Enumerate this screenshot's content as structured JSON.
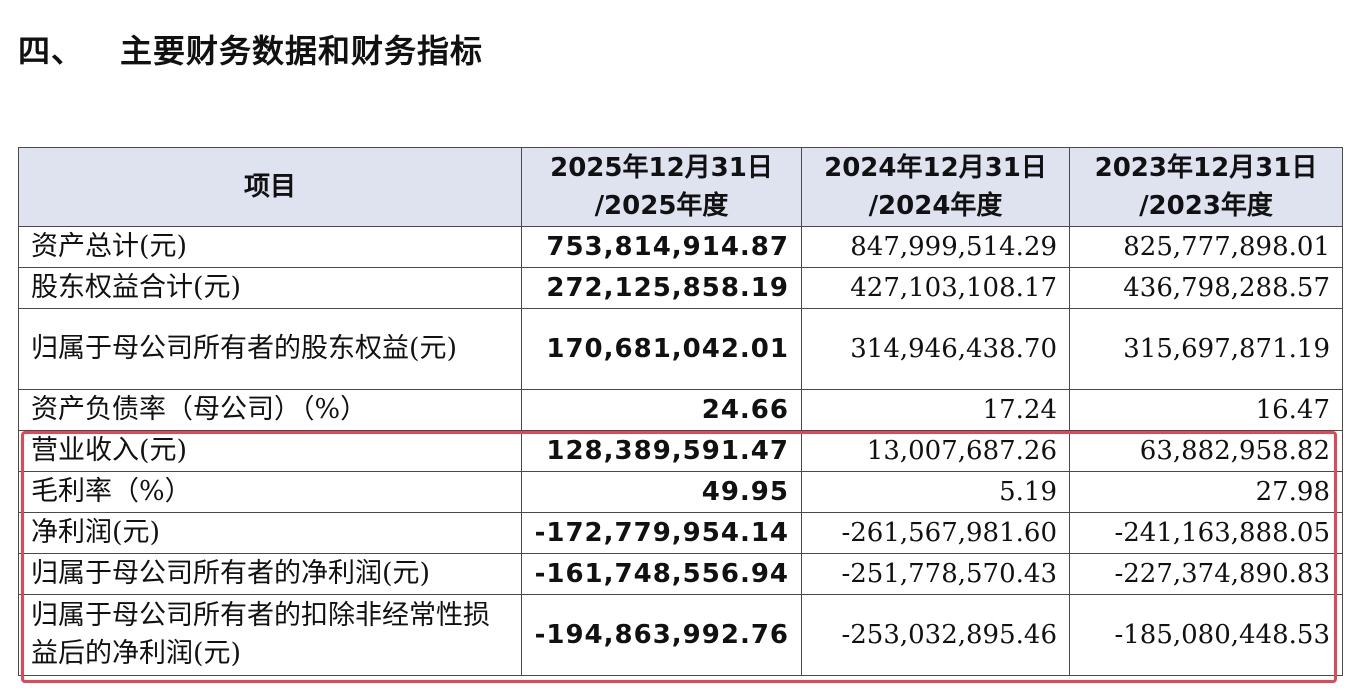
{
  "section": {
    "number": "四、",
    "title": "主要财务数据和财务指标"
  },
  "table": {
    "headers": [
      {
        "lines": [
          "项目"
        ]
      },
      {
        "lines": [
          "2025年12月31日",
          "/2025年度"
        ]
      },
      {
        "lines": [
          "2024年12月31日",
          "/2024年度"
        ]
      },
      {
        "lines": [
          "2023年12月31日",
          "/2023年度"
        ]
      }
    ],
    "rows": [
      {
        "label": "资产总计(元)",
        "v2025": "753,814,914.87",
        "v2024": "847,999,514.29",
        "v2023": "825,777,898.01"
      },
      {
        "label": "股东权益合计(元)",
        "v2025": "272,125,858.19",
        "v2024": "427,103,108.17",
        "v2023": "436,798,288.57"
      },
      {
        "label": "归属于母公司所有者的股东权益(元)",
        "v2025": "170,681,042.01",
        "v2024": "314,946,438.70",
        "v2023": "315,697,871.19"
      },
      {
        "label": "资产负债率（母公司）（%）",
        "v2025": "24.66",
        "v2024": "17.24",
        "v2023": "16.47"
      },
      {
        "label": "营业收入(元)",
        "v2025": "128,389,591.47",
        "v2024": "13,007,687.26",
        "v2023": "63,882,958.82"
      },
      {
        "label": "毛利率（%）",
        "v2025": "49.95",
        "v2024": "5.19",
        "v2023": "27.98"
      },
      {
        "label": "净利润(元)",
        "v2025": "-172,779,954.14",
        "v2024": "-261,567,981.60",
        "v2023": "-241,163,888.05"
      },
      {
        "label": "归属于母公司所有者的净利润(元)",
        "v2025": "-161,748,556.94",
        "v2024": "-251,778,570.43",
        "v2023": "-227,374,890.83"
      },
      {
        "label": "归属于母公司所有者的扣除非经常性损益后的净利润(元)",
        "v2025": "-194,863,992.76",
        "v2024": "-253,032,895.46",
        "v2023": "-185,080,448.53"
      }
    ]
  },
  "colors": {
    "header_bg": "#dfe3f0",
    "highlight_border": "#e64653",
    "grid": "#4a4a4a"
  }
}
